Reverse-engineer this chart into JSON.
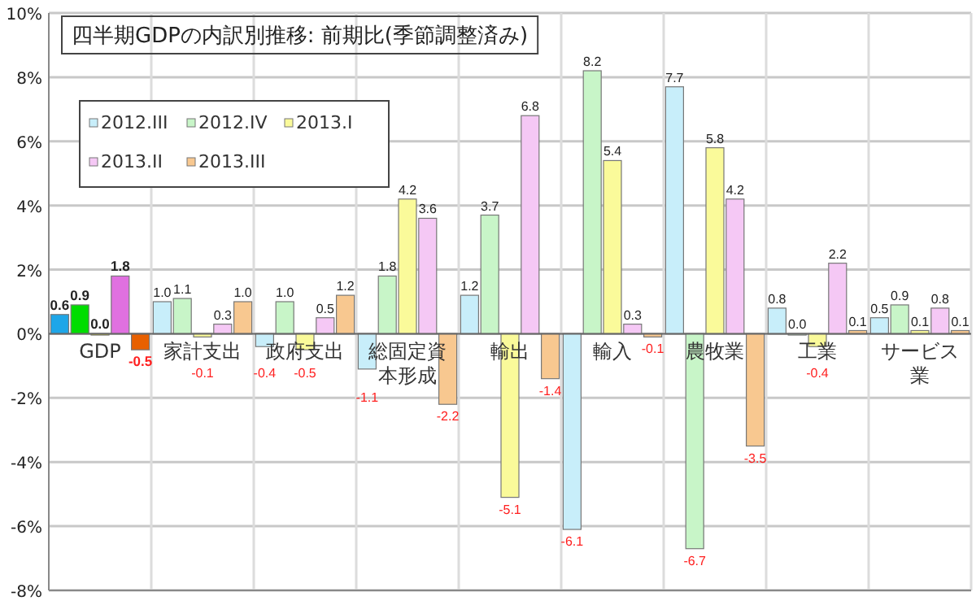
{
  "chart_data": {
    "type": "bar",
    "title": "四半期GDPの内訳別推移: 前期比(季節調整済み)",
    "categories": [
      "GDP",
      "家計支出",
      "政府支出",
      "総固定資本形成",
      "輸出",
      "輸入",
      "農牧業",
      "工業",
      "サービス業"
    ],
    "series": [
      {
        "name": "2012.III",
        "color": "#c8eefa",
        "colors": [
          "#1ea6e8",
          "#c8eefa",
          "#c8eefa",
          "#c8eefa",
          "#c8eefa",
          "#c8eefa",
          "#c8eefa",
          "#c8eefa",
          "#c8eefa"
        ],
        "values": [
          0.6,
          1.0,
          -0.4,
          -1.1,
          1.2,
          -6.1,
          7.7,
          0.8,
          0.5
        ],
        "value_labels": [
          "0.6",
          "1.0",
          "-0.4",
          "-1.1",
          "1.2",
          "-6.1",
          "7.7",
          "0.8",
          "0.5"
        ]
      },
      {
        "name": "2012.IV",
        "color": "#c8f5c8",
        "colors": [
          "#00dd00",
          "#c8f5c8",
          "#c8f5c8",
          "#c8f5c8",
          "#c8f5c8",
          "#c8f5c8",
          "#c8f5c8",
          "#c8f5c8",
          "#c8f5c8"
        ],
        "values": [
          0.9,
          1.1,
          1.0,
          1.8,
          3.7,
          8.2,
          -6.7,
          0.0,
          0.9
        ],
        "value_labels": [
          "0.9",
          "1.1",
          "1.0",
          "1.8",
          "3.7",
          "8.2",
          "-6.7",
          "0.0",
          "0.9"
        ]
      },
      {
        "name": "2013.I",
        "color": "#fafa9a",
        "colors": [
          "#e8e800",
          "#fafa9a",
          "#fafa9a",
          "#fafa9a",
          "#fafa9a",
          "#fafa9a",
          "#fafa9a",
          "#fafa9a",
          "#fafa9a"
        ],
        "values": [
          0.0,
          -0.1,
          -0.5,
          4.2,
          -5.1,
          5.4,
          5.8,
          -0.4,
          0.1
        ],
        "value_labels": [
          "0.0",
          "-0.1",
          "-0.5",
          "4.2",
          "-5.1",
          "5.4",
          "5.8",
          "-0.4",
          "0.1"
        ]
      },
      {
        "name": "2013.II",
        "color": "#f5c8f5",
        "colors": [
          "#e070e0",
          "#f5c8f5",
          "#f5c8f5",
          "#f5c8f5",
          "#f5c8f5",
          "#f5c8f5",
          "#f5c8f5",
          "#f5c8f5",
          "#f5c8f5"
        ],
        "values": [
          1.8,
          0.3,
          0.5,
          3.6,
          6.8,
          0.3,
          4.2,
          2.2,
          0.8
        ],
        "value_labels": [
          "1.8",
          "0.3",
          "0.5",
          "3.6",
          "6.8",
          "0.3",
          "4.2",
          "2.2",
          "0.8"
        ]
      },
      {
        "name": "2013.III",
        "color": "#f8c890",
        "colors": [
          "#e86000",
          "#f8c890",
          "#f8c890",
          "#f8c890",
          "#f8c890",
          "#f8c890",
          "#f8c890",
          "#f8c890",
          "#f8c890"
        ],
        "values": [
          -0.5,
          1.0,
          1.2,
          -2.2,
          -1.4,
          -0.1,
          -3.5,
          0.1,
          0.1
        ],
        "value_labels": [
          "-0.5",
          "1.0",
          "1.2",
          "-2.2",
          "-1.4",
          "-0.1",
          "-3.5",
          "0.1",
          "0.1"
        ]
      }
    ],
    "ylim": [
      -8,
      10
    ],
    "yticks": [
      {
        "value": -8,
        "label": "-8%"
      },
      {
        "value": -6,
        "label": "-6%"
      },
      {
        "value": -4,
        "label": "-4%"
      },
      {
        "value": -2,
        "label": "-2%"
      },
      {
        "value": 0,
        "label": "0%"
      },
      {
        "value": 2,
        "label": "2%"
      },
      {
        "value": 4,
        "label": "4%"
      },
      {
        "value": 6,
        "label": "6%"
      },
      {
        "value": 8,
        "label": "8%"
      },
      {
        "value": 10,
        "label": "10%"
      }
    ],
    "grid": true,
    "legend": "top left"
  }
}
